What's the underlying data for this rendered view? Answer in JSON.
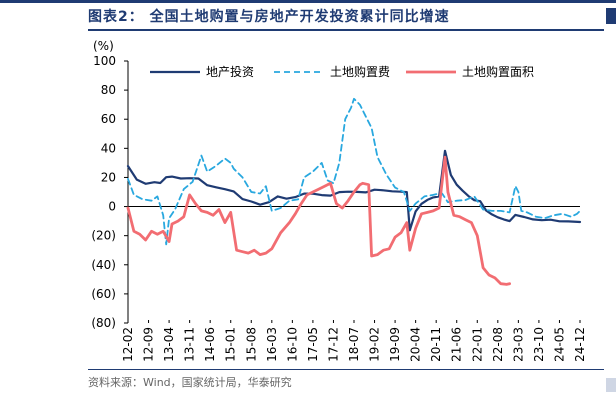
{
  "header": {
    "title": "图表2：  全国土地购置与房地产开发投资累计同比增速"
  },
  "source": {
    "text": "资料来源：Wind，国家统计局，华泰研究"
  },
  "chart_data": {
    "type": "line",
    "ylabel": "(%)",
    "ylim": [
      -80,
      100
    ],
    "yticks": [
      "100",
      "80",
      "60",
      "40",
      "20",
      "0",
      "(20)",
      "(40)",
      "(60)",
      "(80)"
    ],
    "ytick_values": [
      100,
      80,
      60,
      40,
      20,
      0,
      -20,
      -40,
      -60,
      -80
    ],
    "x_range": [
      "2012-02",
      "2024-12"
    ],
    "xticks": [
      "12-02",
      "12-09",
      "13-04",
      "13-11",
      "14-06",
      "15-01",
      "15-08",
      "16-03",
      "16-10",
      "17-05",
      "17-12",
      "18-07",
      "19-02",
      "19-09",
      "20-04",
      "20-11",
      "21-06",
      "22-01",
      "22-08",
      "23-03",
      "23-10",
      "24-05",
      "24-12"
    ],
    "legend_position": "top",
    "series": [
      {
        "name": "地产投资",
        "color": "#1f3b73",
        "dash": "solid",
        "width": 2.2,
        "points": [
          [
            "2012-02",
            27.8
          ],
          [
            "2012-05",
            18.5
          ],
          [
            "2012-08",
            15.6
          ],
          [
            "2012-11",
            16.7
          ],
          [
            "2013-01",
            16.2
          ],
          [
            "2013-03",
            20.2
          ],
          [
            "2013-05",
            20.6
          ],
          [
            "2013-08",
            19.3
          ],
          [
            "2013-11",
            19.5
          ],
          [
            "2014-02",
            19.3
          ],
          [
            "2014-05",
            14.7
          ],
          [
            "2014-08",
            13.2
          ],
          [
            "2014-11",
            11.9
          ],
          [
            "2015-02",
            10.4
          ],
          [
            "2015-05",
            5.1
          ],
          [
            "2015-08",
            3.5
          ],
          [
            "2015-11",
            1.3
          ],
          [
            "2016-02",
            3.0
          ],
          [
            "2016-05",
            7.0
          ],
          [
            "2016-08",
            5.4
          ],
          [
            "2016-11",
            6.5
          ],
          [
            "2017-02",
            8.9
          ],
          [
            "2017-05",
            8.8
          ],
          [
            "2017-08",
            7.9
          ],
          [
            "2017-11",
            7.5
          ],
          [
            "2018-02",
            9.9
          ],
          [
            "2018-05",
            10.2
          ],
          [
            "2018-08",
            10.1
          ],
          [
            "2018-11",
            9.7
          ],
          [
            "2019-02",
            11.6
          ],
          [
            "2019-05",
            11.2
          ],
          [
            "2019-08",
            10.5
          ],
          [
            "2019-11",
            10.2
          ],
          [
            "2020-01",
            9.9
          ],
          [
            "2020-02",
            -16.3
          ],
          [
            "2020-04",
            -3.3
          ],
          [
            "2020-06",
            1.9
          ],
          [
            "2020-08",
            4.6
          ],
          [
            "2020-10",
            6.3
          ],
          [
            "2020-12",
            7.0
          ],
          [
            "2021-02",
            38.3
          ],
          [
            "2021-04",
            21.6
          ],
          [
            "2021-06",
            15.0
          ],
          [
            "2021-08",
            10.9
          ],
          [
            "2021-10",
            7.2
          ],
          [
            "2021-12",
            4.4
          ],
          [
            "2022-02",
            3.7
          ],
          [
            "2022-04",
            -2.7
          ],
          [
            "2022-06",
            -5.4
          ],
          [
            "2022-08",
            -7.4
          ],
          [
            "2022-10",
            -8.8
          ],
          [
            "2022-12",
            -10.0
          ],
          [
            "2023-02",
            -5.7
          ],
          [
            "2023-05",
            -7.2
          ],
          [
            "2023-08",
            -8.8
          ],
          [
            "2023-11",
            -9.4
          ],
          [
            "2024-02",
            -9.0
          ],
          [
            "2024-05",
            -10.1
          ],
          [
            "2024-08",
            -10.2
          ],
          [
            "2024-12",
            -10.6
          ]
        ]
      },
      {
        "name": "土地购置费",
        "color": "#29a8df",
        "dash": "6,4",
        "width": 1.8,
        "points": [
          [
            "2012-02",
            19.0
          ],
          [
            "2012-04",
            8.0
          ],
          [
            "2012-07",
            5.0
          ],
          [
            "2012-10",
            4.0
          ],
          [
            "2012-12",
            7.0
          ],
          [
            "2013-02",
            -6.0
          ],
          [
            "2013-03",
            -26.0
          ],
          [
            "2013-04",
            -8.0
          ],
          [
            "2013-06",
            -2.0
          ],
          [
            "2013-09",
            12.0
          ],
          [
            "2013-12",
            17.0
          ],
          [
            "2014-03",
            35.0
          ],
          [
            "2014-05",
            24.0
          ],
          [
            "2014-08",
            28.0
          ],
          [
            "2014-11",
            33.0
          ],
          [
            "2015-01",
            30.0
          ],
          [
            "2015-02",
            26.0
          ],
          [
            "2015-05",
            20.0
          ],
          [
            "2015-08",
            10.0
          ],
          [
            "2015-11",
            9.0
          ],
          [
            "2016-01",
            14.0
          ],
          [
            "2016-03",
            -3.0
          ],
          [
            "2016-06",
            -1.0
          ],
          [
            "2016-09",
            4.0
          ],
          [
            "2016-12",
            5.0
          ],
          [
            "2017-02",
            20.0
          ],
          [
            "2017-05",
            24.0
          ],
          [
            "2017-08",
            30.0
          ],
          [
            "2017-10",
            18.0
          ],
          [
            "2017-12",
            16.0
          ],
          [
            "2018-02",
            30.0
          ],
          [
            "2018-04",
            60.0
          ],
          [
            "2018-06",
            68.0
          ],
          [
            "2018-07",
            74.0
          ],
          [
            "2018-09",
            70.0
          ],
          [
            "2018-11",
            62.0
          ],
          [
            "2019-01",
            54.0
          ],
          [
            "2019-03",
            34.0
          ],
          [
            "2019-06",
            22.0
          ],
          [
            "2019-09",
            13.0
          ],
          [
            "2019-12",
            10.0
          ],
          [
            "2020-02",
            -3.0
          ],
          [
            "2020-04",
            2.0
          ],
          [
            "2020-07",
            7.0
          ],
          [
            "2020-10",
            8.0
          ],
          [
            "2020-12",
            9.0
          ],
          [
            "2021-01",
            9.0
          ],
          [
            "2021-03",
            3.0
          ],
          [
            "2021-06",
            4.0
          ],
          [
            "2021-09",
            4.5
          ],
          [
            "2021-12",
            7.0
          ],
          [
            "2022-03",
            -2.0
          ],
          [
            "2022-06",
            -3.0
          ],
          [
            "2022-09",
            -3.0
          ],
          [
            "2022-12",
            -4.0
          ],
          [
            "2023-02",
            14.0
          ],
          [
            "2023-03",
            10.0
          ],
          [
            "2023-04",
            -3.0
          ],
          [
            "2023-06",
            -4.0
          ],
          [
            "2023-09",
            -7.0
          ],
          [
            "2023-12",
            -8.0
          ],
          [
            "2024-03",
            -6.0
          ],
          [
            "2024-06",
            -5.0
          ],
          [
            "2024-09",
            -7.0
          ],
          [
            "2024-11",
            -5.0
          ],
          [
            "2024-12",
            -3.0
          ]
        ]
      },
      {
        "name": "土地购置面积",
        "color": "#f26d72",
        "dash": "solid",
        "width": 2.8,
        "points": [
          [
            "2012-02",
            -1.0
          ],
          [
            "2012-04",
            -17.0
          ],
          [
            "2012-06",
            -19.0
          ],
          [
            "2012-08",
            -23.0
          ],
          [
            "2012-10",
            -17.0
          ],
          [
            "2012-12",
            -19.0
          ],
          [
            "2013-02",
            -17.0
          ],
          [
            "2013-04",
            -24.0
          ],
          [
            "2013-05",
            -12.0
          ],
          [
            "2013-07",
            -10.0
          ],
          [
            "2013-09",
            -7.0
          ],
          [
            "2013-11",
            8.0
          ],
          [
            "2014-01",
            2.0
          ],
          [
            "2014-03",
            -3.0
          ],
          [
            "2014-05",
            -4.0
          ],
          [
            "2014-07",
            -6.0
          ],
          [
            "2014-09",
            -2.0
          ],
          [
            "2014-11",
            -11.0
          ],
          [
            "2015-01",
            -4.0
          ],
          [
            "2015-03",
            -30.0
          ],
          [
            "2015-05",
            -31.0
          ],
          [
            "2015-07",
            -32.0
          ],
          [
            "2015-09",
            -30.0
          ],
          [
            "2015-11",
            -33.0
          ],
          [
            "2016-01",
            -32.0
          ],
          [
            "2016-03",
            -29.0
          ],
          [
            "2016-06",
            -18.0
          ],
          [
            "2016-09",
            -11.0
          ],
          [
            "2016-11",
            -5.0
          ],
          [
            "2017-01",
            2.0
          ],
          [
            "2017-03",
            8.0
          ],
          [
            "2017-05",
            10.0
          ],
          [
            "2017-07",
            12.0
          ],
          [
            "2017-09",
            14.0
          ],
          [
            "2017-11",
            16.0
          ],
          [
            "2018-01",
            2.0
          ],
          [
            "2018-03",
            -1.0
          ],
          [
            "2018-05",
            4.0
          ],
          [
            "2018-07",
            10.0
          ],
          [
            "2018-09",
            15.0
          ],
          [
            "2018-10",
            16.0
          ],
          [
            "2018-12",
            15.0
          ],
          [
            "2019-01",
            -34.0
          ],
          [
            "2019-03",
            -33.0
          ],
          [
            "2019-05",
            -30.0
          ],
          [
            "2019-07",
            -29.0
          ],
          [
            "2019-09",
            -21.0
          ],
          [
            "2019-11",
            -18.0
          ],
          [
            "2020-01",
            -11.0
          ],
          [
            "2020-02",
            -30.0
          ],
          [
            "2020-04",
            -15.0
          ],
          [
            "2020-06",
            -5.0
          ],
          [
            "2020-08",
            -4.0
          ],
          [
            "2020-10",
            -3.0
          ],
          [
            "2020-12",
            -1.0
          ],
          [
            "2021-02",
            34.0
          ],
          [
            "2021-03",
            10.0
          ],
          [
            "2021-05",
            -6.0
          ],
          [
            "2021-07",
            -7.0
          ],
          [
            "2021-09",
            -9.0
          ],
          [
            "2021-11",
            -11.0
          ],
          [
            "2022-01",
            -20.0
          ],
          [
            "2022-03",
            -42.0
          ],
          [
            "2022-05",
            -47.0
          ],
          [
            "2022-07",
            -49.0
          ],
          [
            "2022-09",
            -53.0
          ],
          [
            "2022-11",
            -53.5
          ],
          [
            "2022-12",
            -53.0
          ]
        ]
      }
    ]
  }
}
